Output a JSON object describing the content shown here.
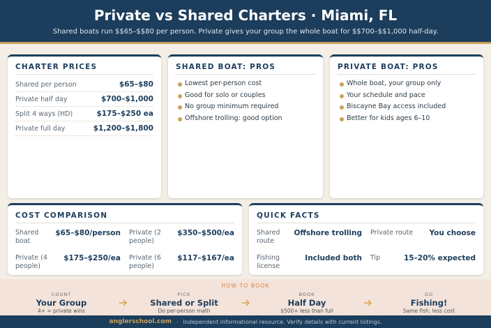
{
  "header": {
    "title": "Private vs Shared Charters · Miami, FL",
    "subtitle": "Shared boats run $$65–$$80 per person. Private gives your group the whole boat for $$700–$$1,000 half-day."
  },
  "charter_prices": {
    "title": "CHARTER PRICES",
    "rows": [
      [
        "Shared per person",
        "$65–$80"
      ],
      [
        "Private half day",
        "$700–$1,000"
      ],
      [
        "Split 4 ways (HD)",
        "$175–$250 ea"
      ],
      [
        "Private full day",
        "$1,200–$1,800"
      ]
    ]
  },
  "shared_pros": {
    "title": "SHARED BOAT: PROS",
    "items": [
      "Lowest per-person cost",
      "Good for solo or couples",
      "No group minimum required",
      "Offshore trolling: good option"
    ]
  },
  "private_pros": {
    "title": "PRIVATE BOAT: PROS",
    "items": [
      "Whole boat, your group only",
      "Your schedule and pace",
      "Biscayne Bay access included",
      "Better for kids ages 6–10"
    ]
  },
  "cost_comparison": {
    "title": "COST COMPARISON",
    "items": [
      [
        "Shared boat",
        "$65–$80/person"
      ],
      [
        "Private (2 people)",
        "$350–$500/ea"
      ],
      [
        "Private (4 people)",
        "$175–$250/ea"
      ],
      [
        "Private (6 people)",
        "$117–$167/ea"
      ]
    ]
  },
  "quick_facts": {
    "title": "QUICK FACTS",
    "items": [
      [
        "Shared route",
        "Offshore trolling"
      ],
      [
        "Private route",
        "You choose"
      ],
      [
        "Fishing license",
        "Included both"
      ],
      [
        "Tip",
        "15–20% expected"
      ]
    ]
  },
  "how_to_book": {
    "title": "HOW TO BOOK",
    "steps": [
      {
        "label": "COUNT",
        "title": "Your Group",
        "note": "4+ = private wins"
      },
      {
        "label": "PICK",
        "title": "Shared or Split",
        "note": "Do per-person math"
      },
      {
        "label": "BOOK",
        "title": "Half Day",
        "note": "$500+ less than full"
      },
      {
        "label": "GO",
        "title": "Fishing!",
        "note": "Same fish, less cost"
      }
    ]
  },
  "footer": {
    "site": "anglerschool.com",
    "separator": "·",
    "note": "Independent informational resource. Verify details with current listings."
  }
}
